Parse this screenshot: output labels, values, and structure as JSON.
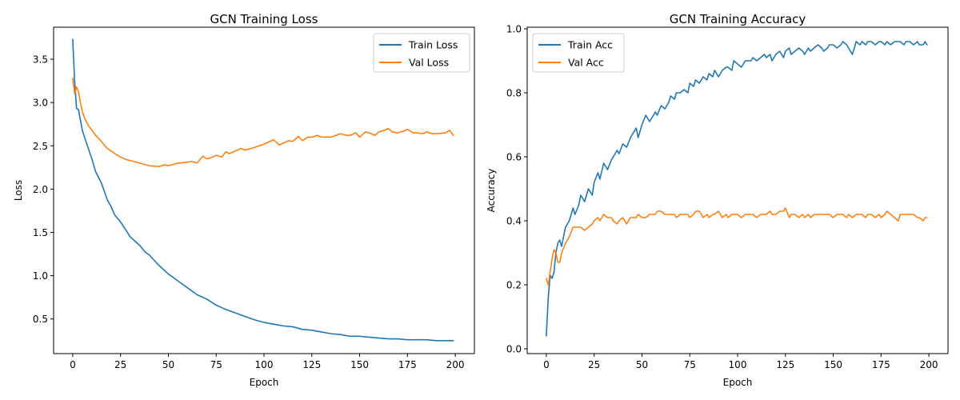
{
  "chart_data": [
    {
      "type": "line",
      "title": "GCN Training Loss",
      "xlabel": "Epoch",
      "ylabel": "Loss",
      "xlim": [
        -10,
        210
      ],
      "ylim": [
        0.1,
        3.87
      ],
      "xticks": [
        0,
        25,
        50,
        75,
        100,
        125,
        150,
        175,
        200
      ],
      "yticks": [
        0.5,
        1.0,
        1.5,
        2.0,
        2.5,
        3.0,
        3.5
      ],
      "ytick_decimals": 1,
      "legend": "top-right",
      "series": [
        {
          "name": "Train Loss",
          "color": "#1f77b4",
          "x": [
            0,
            1,
            2,
            3,
            4,
            5,
            6,
            8,
            10,
            12,
            15,
            18,
            20,
            22,
            25,
            28,
            30,
            35,
            38,
            40,
            45,
            50,
            55,
            60,
            65,
            70,
            75,
            80,
            85,
            90,
            95,
            100,
            105,
            110,
            115,
            120,
            125,
            130,
            135,
            140,
            145,
            150,
            155,
            160,
            165,
            170,
            175,
            180,
            185,
            190,
            195,
            199
          ],
          "values": [
            3.73,
            3.25,
            2.93,
            2.92,
            2.8,
            2.68,
            2.61,
            2.48,
            2.35,
            2.2,
            2.07,
            1.88,
            1.8,
            1.7,
            1.62,
            1.52,
            1.45,
            1.35,
            1.27,
            1.24,
            1.12,
            1.02,
            0.94,
            0.86,
            0.78,
            0.73,
            0.66,
            0.61,
            0.57,
            0.53,
            0.49,
            0.46,
            0.44,
            0.42,
            0.41,
            0.38,
            0.37,
            0.35,
            0.33,
            0.32,
            0.3,
            0.3,
            0.29,
            0.28,
            0.27,
            0.27,
            0.26,
            0.26,
            0.26,
            0.25,
            0.25,
            0.25
          ]
        },
        {
          "name": "Val Loss",
          "color": "#ff7f0e",
          "x": [
            0,
            1,
            2,
            3,
            4,
            5,
            6,
            8,
            10,
            12,
            15,
            18,
            20,
            22,
            25,
            28,
            30,
            35,
            40,
            45,
            48,
            50,
            55,
            60,
            62,
            65,
            68,
            70,
            72,
            75,
            78,
            80,
            82,
            85,
            88,
            90,
            95,
            100,
            103,
            105,
            108,
            110,
            113,
            115,
            118,
            120,
            123,
            125,
            128,
            130,
            135,
            140,
            143,
            145,
            148,
            150,
            153,
            155,
            158,
            160,
            163,
            165,
            167,
            170,
            173,
            175,
            178,
            180,
            183,
            185,
            188,
            190,
            195,
            197,
            199
          ],
          "values": [
            3.28,
            3.1,
            3.18,
            3.13,
            3.0,
            2.9,
            2.83,
            2.74,
            2.68,
            2.62,
            2.55,
            2.47,
            2.44,
            2.41,
            2.37,
            2.34,
            2.33,
            2.3,
            2.27,
            2.26,
            2.28,
            2.27,
            2.3,
            2.31,
            2.32,
            2.3,
            2.38,
            2.35,
            2.36,
            2.39,
            2.37,
            2.43,
            2.41,
            2.44,
            2.47,
            2.45,
            2.48,
            2.52,
            2.55,
            2.57,
            2.51,
            2.53,
            2.56,
            2.55,
            2.61,
            2.56,
            2.6,
            2.6,
            2.62,
            2.6,
            2.6,
            2.64,
            2.62,
            2.62,
            2.65,
            2.6,
            2.66,
            2.65,
            2.62,
            2.66,
            2.68,
            2.7,
            2.66,
            2.65,
            2.67,
            2.69,
            2.65,
            2.65,
            2.64,
            2.66,
            2.64,
            2.64,
            2.65,
            2.68,
            2.62
          ]
        }
      ]
    },
    {
      "type": "line",
      "title": "GCN Training Accuracy",
      "xlabel": "Epoch",
      "ylabel": "Accuracy",
      "xlim": [
        -10,
        210
      ],
      "ylim": [
        -0.015,
        1.005
      ],
      "xticks": [
        0,
        25,
        50,
        75,
        100,
        125,
        150,
        175,
        200
      ],
      "yticks": [
        0.0,
        0.2,
        0.4,
        0.6,
        0.8,
        1.0
      ],
      "ytick_decimals": 1,
      "legend": "top-left",
      "series": [
        {
          "name": "Train Acc",
          "color": "#1f77b4",
          "x": [
            0,
            1,
            2,
            3,
            4,
            5,
            6,
            7,
            8,
            10,
            12,
            14,
            15,
            17,
            18,
            20,
            22,
            24,
            25,
            27,
            28,
            30,
            32,
            34,
            35,
            37,
            38,
            40,
            42,
            44,
            45,
            47,
            48,
            50,
            52,
            54,
            55,
            57,
            58,
            60,
            62,
            64,
            65,
            67,
            68,
            70,
            72,
            74,
            75,
            77,
            78,
            80,
            82,
            84,
            85,
            87,
            88,
            90,
            92,
            94,
            95,
            97,
            98,
            100,
            102,
            104,
            105,
            107,
            108,
            110,
            112,
            114,
            115,
            117,
            118,
            120,
            122,
            124,
            125,
            127,
            128,
            130,
            132,
            134,
            135,
            137,
            138,
            140,
            142,
            144,
            145,
            147,
            148,
            150,
            152,
            154,
            155,
            157,
            158,
            160,
            162,
            164,
            165,
            167,
            168,
            170,
            172,
            174,
            175,
            177,
            178,
            180,
            182,
            184,
            185,
            187,
            188,
            190,
            192,
            194,
            195,
            197,
            198,
            199
          ],
          "values": [
            0.04,
            0.16,
            0.23,
            0.22,
            0.24,
            0.3,
            0.33,
            0.34,
            0.32,
            0.38,
            0.4,
            0.44,
            0.42,
            0.45,
            0.48,
            0.46,
            0.5,
            0.48,
            0.52,
            0.55,
            0.53,
            0.58,
            0.56,
            0.59,
            0.6,
            0.62,
            0.61,
            0.64,
            0.63,
            0.66,
            0.67,
            0.69,
            0.66,
            0.7,
            0.73,
            0.71,
            0.72,
            0.74,
            0.73,
            0.76,
            0.75,
            0.77,
            0.79,
            0.78,
            0.8,
            0.8,
            0.81,
            0.8,
            0.83,
            0.82,
            0.84,
            0.83,
            0.85,
            0.84,
            0.86,
            0.85,
            0.87,
            0.85,
            0.87,
            0.88,
            0.88,
            0.87,
            0.9,
            0.89,
            0.88,
            0.9,
            0.9,
            0.9,
            0.91,
            0.9,
            0.91,
            0.92,
            0.91,
            0.92,
            0.9,
            0.92,
            0.93,
            0.91,
            0.93,
            0.94,
            0.92,
            0.93,
            0.94,
            0.93,
            0.92,
            0.94,
            0.93,
            0.94,
            0.95,
            0.94,
            0.93,
            0.94,
            0.95,
            0.95,
            0.94,
            0.95,
            0.96,
            0.95,
            0.94,
            0.92,
            0.96,
            0.95,
            0.96,
            0.95,
            0.96,
            0.96,
            0.95,
            0.96,
            0.96,
            0.95,
            0.96,
            0.95,
            0.96,
            0.96,
            0.96,
            0.95,
            0.96,
            0.96,
            0.95,
            0.96,
            0.95,
            0.95,
            0.96,
            0.95
          ]
        },
        {
          "name": "Val Acc",
          "color": "#ff7f0e",
          "x": [
            0,
            1,
            2,
            3,
            4,
            5,
            6,
            7,
            8,
            10,
            12,
            14,
            15,
            17,
            18,
            20,
            22,
            24,
            25,
            27,
            28,
            30,
            32,
            34,
            35,
            37,
            38,
            40,
            42,
            44,
            45,
            47,
            48,
            50,
            52,
            54,
            55,
            57,
            58,
            60,
            62,
            64,
            65,
            67,
            68,
            70,
            72,
            74,
            75,
            77,
            78,
            80,
            82,
            84,
            85,
            87,
            88,
            90,
            92,
            94,
            95,
            97,
            98,
            100,
            102,
            104,
            105,
            107,
            108,
            110,
            112,
            114,
            115,
            117,
            118,
            120,
            122,
            124,
            125,
            127,
            128,
            130,
            132,
            134,
            135,
            137,
            138,
            140,
            142,
            144,
            145,
            147,
            148,
            150,
            152,
            154,
            155,
            157,
            158,
            160,
            162,
            164,
            165,
            167,
            168,
            170,
            172,
            174,
            175,
            177,
            178,
            180,
            182,
            184,
            185,
            187,
            188,
            190,
            192,
            194,
            195,
            197,
            198,
            199
          ],
          "values": [
            0.22,
            0.2,
            0.24,
            0.28,
            0.31,
            0.3,
            0.27,
            0.27,
            0.3,
            0.33,
            0.35,
            0.38,
            0.38,
            0.38,
            0.38,
            0.37,
            0.38,
            0.39,
            0.4,
            0.41,
            0.4,
            0.42,
            0.41,
            0.41,
            0.4,
            0.39,
            0.4,
            0.41,
            0.39,
            0.41,
            0.41,
            0.41,
            0.42,
            0.41,
            0.41,
            0.42,
            0.42,
            0.42,
            0.43,
            0.43,
            0.42,
            0.42,
            0.42,
            0.42,
            0.41,
            0.42,
            0.42,
            0.42,
            0.41,
            0.42,
            0.43,
            0.43,
            0.41,
            0.42,
            0.41,
            0.42,
            0.42,
            0.43,
            0.41,
            0.42,
            0.41,
            0.42,
            0.42,
            0.42,
            0.41,
            0.42,
            0.42,
            0.42,
            0.42,
            0.41,
            0.42,
            0.42,
            0.42,
            0.43,
            0.42,
            0.42,
            0.43,
            0.43,
            0.44,
            0.41,
            0.42,
            0.42,
            0.41,
            0.42,
            0.41,
            0.42,
            0.41,
            0.42,
            0.42,
            0.42,
            0.42,
            0.42,
            0.42,
            0.41,
            0.42,
            0.42,
            0.42,
            0.41,
            0.42,
            0.41,
            0.42,
            0.42,
            0.42,
            0.41,
            0.42,
            0.42,
            0.41,
            0.42,
            0.41,
            0.42,
            0.43,
            0.42,
            0.41,
            0.4,
            0.42,
            0.42,
            0.42,
            0.42,
            0.42,
            0.41,
            0.41,
            0.4,
            0.41,
            0.41
          ]
        }
      ]
    }
  ]
}
